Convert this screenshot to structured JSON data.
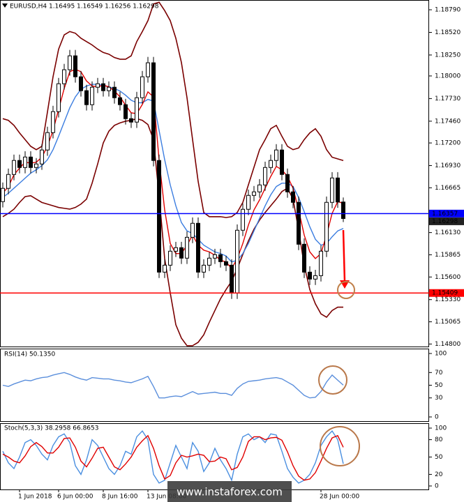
{
  "chart_data": [
    {
      "type": "candlestick",
      "title": "EURUSD,H4  1.16495 1.16549 1.16256 1.16298",
      "categories": [
        null,
        null,
        null,
        "1 Jun 2018",
        null,
        null,
        null,
        null,
        null,
        null,
        "6 Jun 00:00",
        null,
        null,
        null,
        null,
        null,
        null,
        null,
        "8 Jun 16:00",
        null,
        null,
        null,
        null,
        null,
        null,
        null,
        "13 Jun 08:00",
        null,
        null,
        null,
        null,
        null,
        null,
        null,
        null,
        null,
        null,
        null,
        null,
        null,
        null,
        null,
        null,
        null,
        null,
        null,
        null,
        null,
        null,
        null,
        null,
        null,
        null,
        null,
        null,
        null,
        null,
        "28 Jun 00:00",
        null,
        null,
        null,
        null
      ],
      "open": [
        1.165,
        1.16658,
        1.16824,
        1.16991,
        1.16907,
        1.17032,
        1.16907,
        1.16949,
        1.17116,
        1.17324,
        1.17574,
        1.17907,
        1.18074,
        1.1824,
        1.1799,
        1.17824,
        1.17657,
        1.17865,
        1.17907,
        1.17824,
        1.17865,
        1.1774,
        1.17657,
        1.1749,
        1.17449,
        1.1774,
        1.1799,
        1.18157,
        1.16991,
        1.15658,
        1.15741,
        1.15908,
        1.1595,
        1.15825,
        1.16074,
        1.16241,
        1.15658,
        1.15741,
        1.15825,
        1.15866,
        1.15783,
        1.15741,
        1.15408,
        1.16158,
        1.16408,
        1.16574,
        1.16616,
        1.16699,
        1.16907,
        1.16991,
        1.17116,
        1.16824,
        1.16616,
        1.16491,
        1.15991,
        1.15658,
        1.15575,
        1.15616,
        1.15908,
        1.16491,
        1.16782,
        1.16495
      ],
      "high": [
        1.16728,
        1.16894,
        1.17061,
        1.17061,
        1.17102,
        1.17102,
        1.17019,
        1.17186,
        1.17394,
        1.17644,
        1.17977,
        1.18144,
        1.1831,
        1.1831,
        1.1806,
        1.17894,
        1.17935,
        1.17977,
        1.17977,
        1.17935,
        1.17935,
        1.1781,
        1.17727,
        1.1756,
        1.1781,
        1.1806,
        1.18227,
        1.18227,
        1.17061,
        1.15811,
        1.15978,
        1.1602,
        1.1602,
        1.16144,
        1.16311,
        1.16311,
        1.15811,
        1.15895,
        1.15936,
        1.15936,
        1.15853,
        1.15811,
        1.16228,
        1.16478,
        1.16644,
        1.16686,
        1.16769,
        1.16977,
        1.17061,
        1.17186,
        1.17186,
        1.16894,
        1.16686,
        1.16561,
        1.16061,
        1.15728,
        1.15686,
        1.15978,
        1.16561,
        1.16852,
        1.16852,
        1.16549
      ],
      "low": [
        1.1643,
        1.16588,
        1.16754,
        1.16837,
        1.16837,
        1.16837,
        1.16837,
        1.16879,
        1.17046,
        1.17254,
        1.17504,
        1.17837,
        1.18004,
        1.1792,
        1.17754,
        1.17587,
        1.17587,
        1.17795,
        1.17754,
        1.17754,
        1.1767,
        1.17587,
        1.1742,
        1.17379,
        1.17379,
        1.1767,
        1.1792,
        1.16921,
        1.15588,
        1.15588,
        1.15671,
        1.15838,
        1.15755,
        1.15755,
        1.16004,
        1.15588,
        1.15588,
        1.15671,
        1.15755,
        1.15713,
        1.15671,
        1.15338,
        1.15338,
        1.16088,
        1.16338,
        1.16504,
        1.16546,
        1.16629,
        1.16837,
        1.16921,
        1.16754,
        1.16546,
        1.16421,
        1.15921,
        1.15588,
        1.15505,
        1.15505,
        1.15546,
        1.15838,
        1.16421,
        1.16425,
        1.16256
      ],
      "close": [
        1.16658,
        1.16824,
        1.16991,
        1.16907,
        1.17032,
        1.16907,
        1.16949,
        1.17116,
        1.17324,
        1.17574,
        1.17907,
        1.18074,
        1.1824,
        1.1799,
        1.17824,
        1.17657,
        1.17865,
        1.17907,
        1.17824,
        1.17865,
        1.1774,
        1.17657,
        1.1749,
        1.17449,
        1.1774,
        1.1799,
        1.18157,
        1.16991,
        1.15658,
        1.15741,
        1.15908,
        1.1595,
        1.15825,
        1.16074,
        1.16241,
        1.15658,
        1.15741,
        1.15825,
        1.15866,
        1.15783,
        1.15741,
        1.15408,
        1.16158,
        1.16408,
        1.16574,
        1.16616,
        1.16699,
        1.16907,
        1.16991,
        1.17116,
        1.16824,
        1.16616,
        1.16491,
        1.15991,
        1.15658,
        1.15575,
        1.15616,
        1.15908,
        1.16491,
        1.16782,
        1.16495,
        1.16298
      ],
      "candle_color": "#000000",
      "series": [
        {
          "color": "#7a0000",
          "values": [
            1.1749,
            1.1747,
            1.1741,
            1.1732,
            1.1724,
            1.1716,
            1.1712,
            1.1716,
            1.1757,
            1.1799,
            1.1832,
            1.1849,
            1.1853,
            1.1851,
            1.1845,
            1.1841,
            1.1837,
            1.1832,
            1.1828,
            1.1826,
            1.1822,
            1.182,
            1.182,
            1.1824,
            1.1841,
            1.1853,
            1.1866,
            1.1886,
            1.1888,
            1.1878,
            1.1866,
            1.1845,
            1.1816,
            1.1774,
            1.1724,
            1.1674,
            1.1637,
            1.1632,
            1.1632,
            1.1632,
            1.1631,
            1.1632,
            1.1637,
            1.1649,
            1.167,
            1.1691,
            1.1712,
            1.1724,
            1.1737,
            1.1741,
            1.1728,
            1.1716,
            1.1712,
            1.1714,
            1.1724,
            1.1732,
            1.1737,
            1.1728,
            1.1712,
            1.1703,
            1.1701,
            1.1699
          ]
        },
        {
          "color": "#7a0000",
          "values": [
            1.1632,
            1.1636,
            1.1641,
            1.1649,
            1.1656,
            1.1657,
            1.1653,
            1.1649,
            1.1647,
            1.1645,
            1.1643,
            1.1642,
            1.1641,
            1.1643,
            1.1647,
            1.1653,
            1.1672,
            1.1695,
            1.172,
            1.1734,
            1.1741,
            1.1744,
            1.1746,
            1.1747,
            1.1749,
            1.1747,
            1.1742,
            1.1724,
            1.1657,
            1.1582,
            1.1541,
            1.1503,
            1.1487,
            1.1478,
            1.1478,
            1.1482,
            1.1491,
            1.1506,
            1.152,
            1.1534,
            1.1545,
            1.1555,
            1.157,
            1.1587,
            1.1603,
            1.1617,
            1.1628,
            1.1637,
            1.1645,
            1.1653,
            1.1662,
            1.1666,
            1.1653,
            1.1616,
            1.1574,
            1.1545,
            1.1528,
            1.1516,
            1.1512,
            1.152,
            1.1524,
            1.1524
          ]
        },
        {
          "color": "#3b7de0",
          "values": [
            1.1655,
            1.166,
            1.1666,
            1.1672,
            1.1678,
            1.1684,
            1.1688,
            1.1693,
            1.17,
            1.1712,
            1.1728,
            1.1745,
            1.1762,
            1.1775,
            1.1784,
            1.1788,
            1.179,
            1.179,
            1.1789,
            1.1787,
            1.1785,
            1.1782,
            1.1777,
            1.1771,
            1.1768,
            1.1768,
            1.1772,
            1.177,
            1.1735,
            1.17,
            1.167,
            1.1645,
            1.1625,
            1.1615,
            1.1612,
            1.1605,
            1.1598,
            1.1594,
            1.159,
            1.1588,
            1.1585,
            1.1578,
            1.158,
            1.1588,
            1.16,
            1.1615,
            1.163,
            1.1645,
            1.1658,
            1.1668,
            1.1672,
            1.1672,
            1.1668,
            1.1655,
            1.1638,
            1.162,
            1.1605,
            1.1598,
            1.16,
            1.1608,
            1.1615,
            1.1618
          ]
        },
        {
          "color": "#e00000",
          "values": [
            1.166,
            1.1668,
            1.1682,
            1.169,
            1.1697,
            1.1696,
            1.1697,
            1.1703,
            1.1716,
            1.1735,
            1.176,
            1.1785,
            1.1805,
            1.1808,
            1.1805,
            1.1794,
            1.1788,
            1.1787,
            1.1789,
            1.1787,
            1.1782,
            1.1775,
            1.1765,
            1.1756,
            1.1755,
            1.1766,
            1.1781,
            1.1775,
            1.17,
            1.164,
            1.16,
            1.1588,
            1.1588,
            1.1598,
            1.161,
            1.1598,
            1.1592,
            1.159,
            1.1586,
            1.158,
            1.1578,
            1.157,
            1.1582,
            1.16,
            1.1622,
            1.164,
            1.1652,
            1.1666,
            1.168,
            1.1692,
            1.1688,
            1.168,
            1.1666,
            1.164,
            1.161,
            1.159,
            1.1582,
            1.1588,
            1.161,
            1.1636,
            1.165,
            1.1648
          ]
        }
      ],
      "price_lines": [
        {
          "value": 1.16357,
          "color": "#0000ff"
        },
        {
          "value": 1.15409,
          "color": "#ff0000"
        }
      ],
      "ylim": [
        1.1477,
        1.1889
      ],
      "yticks": [
        {
          "value": 1.1879,
          "label": "1.18790"
        },
        {
          "value": 1.1852,
          "label": "1.18520"
        },
        {
          "value": 1.1825,
          "label": "1.18250"
        },
        {
          "value": 1.18,
          "label": "1.18000"
        },
        {
          "value": 1.1773,
          "label": "1.17730"
        },
        {
          "value": 1.1746,
          "label": "1.17460"
        },
        {
          "value": 1.172,
          "label": "1.17200"
        },
        {
          "value": 1.1693,
          "label": "1.16930"
        },
        1.16665,
        {
          "value": 1.1613,
          "label": "1.16130"
        },
        1.15865,
        {
          "value": 1.156,
          "label": "1.15600"
        },
        {
          "value": 1.1533,
          "label": "1.15330"
        },
        1.15065,
        {
          "value": 1.148,
          "label": "1.14800"
        }
      ]
    },
    {
      "type": "line",
      "title": "RSI(14) 50.1350",
      "series": [
        {
          "color": "#5b8fdc",
          "values": [
            50,
            48,
            52,
            55,
            58,
            57,
            60,
            62,
            63,
            66,
            68,
            70,
            67,
            63,
            60,
            58,
            62,
            61,
            60,
            60,
            58,
            57,
            55,
            54,
            57,
            60,
            64,
            48,
            30,
            30,
            32,
            33,
            32,
            36,
            40,
            36,
            37,
            38,
            39,
            37,
            37,
            34,
            45,
            52,
            56,
            57,
            58,
            60,
            61,
            62,
            60,
            55,
            50,
            42,
            34,
            30,
            31,
            40,
            55,
            66,
            58,
            50.135
          ]
        }
      ],
      "ylim": [
        0,
        100
      ],
      "yticks": [
        0,
        30,
        50,
        70,
        100
      ]
    },
    {
      "type": "line",
      "title": "Stoch(5,3,3) 38.2958 66.8653",
      "series": [
        {
          "color": "#4a8fe0",
          "values": [
            60,
            40,
            30,
            50,
            75,
            80,
            70,
            55,
            45,
            70,
            85,
            90,
            75,
            35,
            20,
            45,
            80,
            70,
            50,
            30,
            20,
            35,
            60,
            55,
            85,
            95,
            80,
            20,
            5,
            10,
            40,
            70,
            50,
            30,
            75,
            60,
            25,
            40,
            65,
            45,
            30,
            10,
            55,
            85,
            90,
            80,
            85,
            75,
            90,
            88,
            60,
            30,
            15,
            5,
            10,
            20,
            40,
            70,
            85,
            95,
            80,
            38.2958
          ]
        },
        {
          "color": "#e00000",
          "values": [
            55,
            50,
            43,
            40,
            52,
            68,
            75,
            68,
            57,
            57,
            67,
            82,
            83,
            67,
            43,
            33,
            48,
            65,
            67,
            50,
            33,
            28,
            38,
            50,
            67,
            78,
            87,
            65,
            35,
            12,
            18,
            40,
            53,
            50,
            52,
            55,
            53,
            42,
            43,
            50,
            47,
            28,
            32,
            50,
            77,
            85,
            85,
            80,
            83,
            84,
            79,
            59,
            35,
            17,
            10,
            12,
            23,
            43,
            65,
            83,
            87,
            66.8653
          ]
        }
      ],
      "ylim": [
        0,
        100
      ],
      "yticks": [
        0,
        20,
        50,
        80,
        100
      ]
    }
  ],
  "watermark": "www.instaforex.com"
}
